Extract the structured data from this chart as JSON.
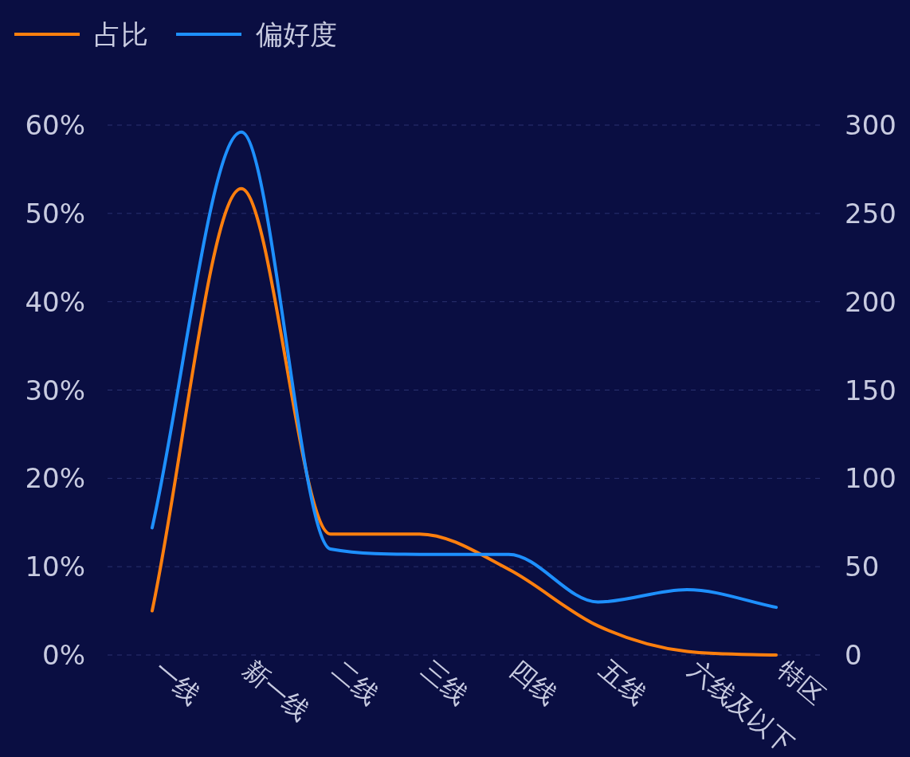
{
  "chart_data": {
    "type": "line",
    "categories": [
      "一线",
      "新一线",
      "二线",
      "三线",
      "四线",
      "五线",
      "六线及以下",
      "特区"
    ],
    "series": [
      {
        "name": "占比",
        "color": "#ff7f0e",
        "values": [
          5,
          52.8,
          13.7,
          13.7,
          9.7,
          3.3,
          0.4,
          0
        ]
      },
      {
        "name": "偏好度",
        "color": "#1e90ff",
        "axis": "y2",
        "values": [
          72,
          296,
          60,
          57,
          57,
          30,
          37,
          27
        ]
      }
    ],
    "ylim": [
      0,
      60
    ],
    "yticks": [
      {
        "value": 0,
        "label": "0%"
      },
      {
        "value": 10,
        "label": "10%"
      },
      {
        "value": 20,
        "label": "20%"
      },
      {
        "value": 30,
        "label": "30%"
      },
      {
        "value": 40,
        "label": "40%"
      },
      {
        "value": 50,
        "label": "50%"
      },
      {
        "value": 60,
        "label": "60%"
      }
    ],
    "y2lim": [
      0,
      300
    ],
    "y2ticks": [
      0,
      50,
      100,
      150,
      200,
      250,
      300
    ],
    "grid": "y",
    "legend": "top left",
    "marker": "none",
    "line_style": "solid"
  }
}
